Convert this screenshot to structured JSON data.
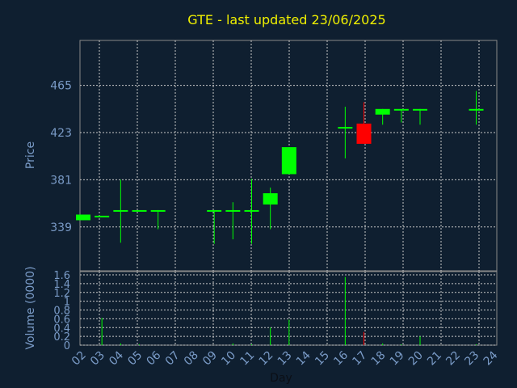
{
  "chart_data": {
    "type": "candlestick",
    "title": "GTE - last updated 23/06/2025",
    "xlabel": "Day",
    "ylabel_price": "Price",
    "ylabel_volume": "Volume (0000)",
    "price_ticks": [
      "465",
      "423",
      "381",
      "339"
    ],
    "price_tick_values": [
      465,
      423,
      381,
      339
    ],
    "price_range": [
      300,
      505
    ],
    "volume_ticks": [
      "1.6",
      "1.4",
      "1.2",
      "1",
      "0.8",
      "0.6",
      "0.4",
      "0.2",
      "0"
    ],
    "volume_tick_values": [
      1.6,
      1.4,
      1.2,
      1.0,
      0.8,
      0.6,
      0.4,
      0.2,
      0
    ],
    "volume_range": [
      0,
      1.6
    ],
    "day_labels": [
      "02",
      "03",
      "04",
      "05",
      "06",
      "07",
      "08",
      "09",
      "10",
      "11",
      "12",
      "13",
      "14",
      "15",
      "16",
      "17",
      "18",
      "19",
      "20",
      "21",
      "22",
      "23",
      "24"
    ],
    "grid": true,
    "up_color": "#00ff00",
    "down_color": "#ff0000",
    "candles": [
      {
        "day": 2,
        "open": 345,
        "close": 350,
        "high": 350,
        "low": 345,
        "volume": 0.0
      },
      {
        "day": 3,
        "open": 349,
        "close": 349,
        "high": 349,
        "low": 349,
        "volume": 0.62
      },
      {
        "day": 4,
        "open": 354,
        "close": 354,
        "high": 381,
        "low": 325,
        "volume": 0.04
      },
      {
        "day": 5,
        "open": 354,
        "close": 354,
        "high": 354,
        "low": 354,
        "volume": 0.02
      },
      {
        "day": 6,
        "open": 354,
        "close": 354,
        "high": 354,
        "low": 337,
        "volume": 0.0
      },
      {
        "day": 9,
        "open": 354,
        "close": 354,
        "high": 354,
        "low": 324,
        "volume": 0.0
      },
      {
        "day": 10,
        "open": 354,
        "close": 354,
        "high": 361,
        "low": 328,
        "volume": 0.04
      },
      {
        "day": 11,
        "open": 354,
        "close": 354,
        "high": 382,
        "low": 324,
        "volume": 0.02
      },
      {
        "day": 12,
        "open": 359,
        "close": 369,
        "high": 374,
        "low": 337,
        "volume": 0.4
      },
      {
        "day": 13,
        "open": 386,
        "close": 410,
        "high": 410,
        "low": 386,
        "volume": 0.58
      },
      {
        "day": 16,
        "open": 428,
        "close": 428,
        "high": 446,
        "low": 400,
        "volume": 1.55
      },
      {
        "day": 17,
        "open": 431,
        "close": 413,
        "high": 450,
        "low": 413,
        "volume": 0.3
      },
      {
        "day": 18,
        "open": 439,
        "close": 444,
        "high": 444,
        "low": 430,
        "volume": 0.04
      },
      {
        "day": 19,
        "open": 444,
        "close": 444,
        "high": 444,
        "low": 432,
        "volume": 0.02
      },
      {
        "day": 20,
        "open": 444,
        "close": 444,
        "high": 444,
        "low": 430,
        "volume": 0.2
      },
      {
        "day": 23,
        "open": 444,
        "close": 444,
        "high": 460,
        "low": 430,
        "volume": 0.02
      }
    ]
  }
}
